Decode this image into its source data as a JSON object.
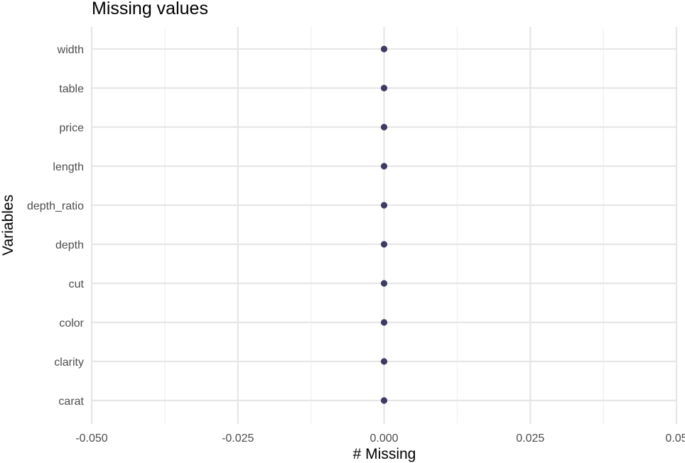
{
  "chart_data": {
    "type": "scatter",
    "title": "Missing values",
    "xlabel": "# Missing",
    "ylabel": "Variables",
    "xlim": [
      -0.05,
      0.05
    ],
    "x_ticks": [
      -0.05,
      -0.025,
      0.0,
      0.025,
      0.05
    ],
    "x_tick_labels": [
      "-0.050",
      "-0.025",
      "0.000",
      "0.025",
      "0.05"
    ],
    "categories": [
      "carat",
      "clarity",
      "color",
      "cut",
      "depth",
      "depth_ratio",
      "length",
      "price",
      "table",
      "width"
    ],
    "values": [
      0,
      0,
      0,
      0,
      0,
      0,
      0,
      0,
      0,
      0
    ],
    "point_color": "#3b3b66",
    "grid": true
  }
}
